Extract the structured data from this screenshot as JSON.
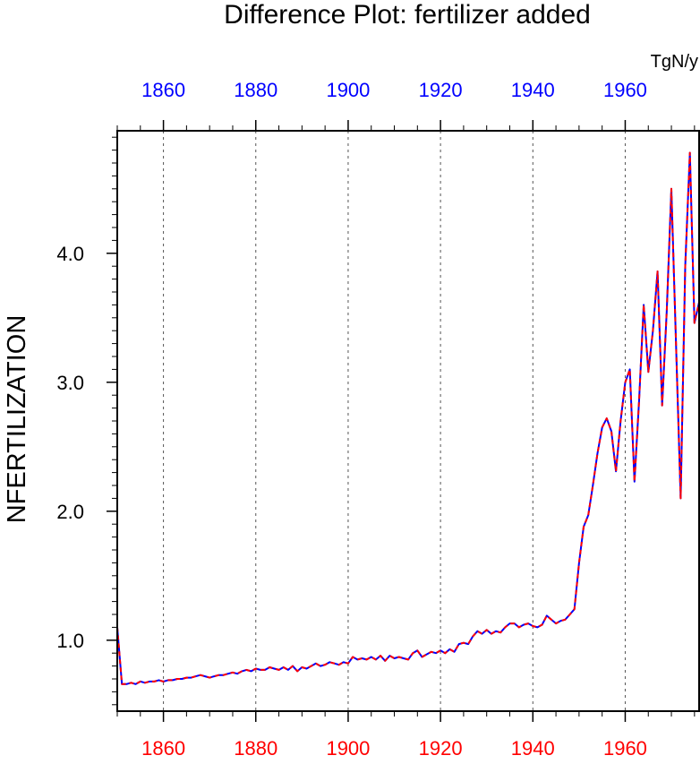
{
  "chart_data": {
    "type": "line",
    "title": "Difference Plot: fertilizer added",
    "xlabel": "",
    "ylabel": "NFERTILIZATION",
    "units": "TgN/y",
    "xlim": [
      1850,
      1976
    ],
    "ylim": [
      0.45,
      4.95
    ],
    "x_ticks_bottom": [
      "1860",
      "1880",
      "1900",
      "1920",
      "1940",
      "1960"
    ],
    "x_ticks_top": [
      "1860",
      "1880",
      "1900",
      "1920",
      "1940",
      "1960"
    ],
    "y_ticks": [
      "1.0",
      "2.0",
      "3.0",
      "4.0"
    ],
    "grid": "vertical dotted lines at major x ticks",
    "colors": {
      "bottom_axis_labels": "#ff0000",
      "top_axis_labels": "#0000ff"
    },
    "series": [
      {
        "color": "#0000ff",
        "style": "solid",
        "x": [
          1850,
          1851,
          1852,
          1853,
          1854,
          1855,
          1856,
          1857,
          1858,
          1859,
          1860,
          1861,
          1862,
          1863,
          1864,
          1865,
          1866,
          1867,
          1868,
          1869,
          1870,
          1871,
          1872,
          1873,
          1874,
          1875,
          1876,
          1877,
          1878,
          1879,
          1880,
          1881,
          1882,
          1883,
          1884,
          1885,
          1886,
          1887,
          1888,
          1889,
          1890,
          1891,
          1892,
          1893,
          1894,
          1895,
          1896,
          1897,
          1898,
          1899,
          1900,
          1901,
          1902,
          1903,
          1904,
          1905,
          1906,
          1907,
          1908,
          1909,
          1910,
          1911,
          1912,
          1913,
          1914,
          1915,
          1916,
          1917,
          1918,
          1919,
          1920,
          1921,
          1922,
          1923,
          1924,
          1925,
          1926,
          1927,
          1928,
          1929,
          1930,
          1931,
          1932,
          1933,
          1934,
          1935,
          1936,
          1937,
          1938,
          1939,
          1940,
          1941,
          1942,
          1943,
          1944,
          1945,
          1946,
          1947,
          1948,
          1949,
          1950,
          1951,
          1952,
          1953,
          1954,
          1955,
          1956,
          1957,
          1958,
          1959,
          1960,
          1961,
          1962,
          1963,
          1964,
          1965,
          1966,
          1967,
          1968,
          1969,
          1970,
          1971,
          1972,
          1973,
          1974,
          1975,
          1976
        ],
        "y": [
          1.1,
          0.66,
          0.66,
          0.67,
          0.66,
          0.68,
          0.67,
          0.68,
          0.68,
          0.69,
          0.68,
          0.69,
          0.69,
          0.7,
          0.7,
          0.71,
          0.71,
          0.72,
          0.73,
          0.72,
          0.71,
          0.72,
          0.73,
          0.73,
          0.74,
          0.75,
          0.74,
          0.76,
          0.77,
          0.76,
          0.78,
          0.77,
          0.77,
          0.79,
          0.78,
          0.77,
          0.79,
          0.77,
          0.8,
          0.76,
          0.79,
          0.78,
          0.8,
          0.82,
          0.8,
          0.81,
          0.83,
          0.82,
          0.81,
          0.83,
          0.82,
          0.87,
          0.85,
          0.86,
          0.85,
          0.87,
          0.85,
          0.88,
          0.84,
          0.88,
          0.86,
          0.87,
          0.86,
          0.85,
          0.9,
          0.92,
          0.87,
          0.89,
          0.91,
          0.9,
          0.92,
          0.9,
          0.93,
          0.91,
          0.97,
          0.98,
          0.97,
          1.03,
          1.07,
          1.05,
          1.08,
          1.05,
          1.07,
          1.06,
          1.1,
          1.13,
          1.13,
          1.1,
          1.12,
          1.13,
          1.11,
          1.1,
          1.12,
          1.19,
          1.16,
          1.13,
          1.15,
          1.16,
          1.2,
          1.24,
          1.6,
          1.88,
          1.97,
          2.2,
          2.45,
          2.65,
          2.72,
          2.62,
          2.31,
          2.7,
          3.0,
          3.1,
          2.23,
          2.85,
          3.6,
          3.08,
          3.4,
          3.86,
          2.82,
          3.56,
          4.5,
          3.3,
          2.1,
          3.9,
          4.78,
          3.46,
          3.62
        ]
      },
      {
        "color": "#ff0000",
        "style": "dashed",
        "x": [
          1850,
          1851,
          1852,
          1853,
          1854,
          1855,
          1856,
          1857,
          1858,
          1859,
          1860,
          1861,
          1862,
          1863,
          1864,
          1865,
          1866,
          1867,
          1868,
          1869,
          1870,
          1871,
          1872,
          1873,
          1874,
          1875,
          1876,
          1877,
          1878,
          1879,
          1880,
          1881,
          1882,
          1883,
          1884,
          1885,
          1886,
          1887,
          1888,
          1889,
          1890,
          1891,
          1892,
          1893,
          1894,
          1895,
          1896,
          1897,
          1898,
          1899,
          1900,
          1901,
          1902,
          1903,
          1904,
          1905,
          1906,
          1907,
          1908,
          1909,
          1910,
          1911,
          1912,
          1913,
          1914,
          1915,
          1916,
          1917,
          1918,
          1919,
          1920,
          1921,
          1922,
          1923,
          1924,
          1925,
          1926,
          1927,
          1928,
          1929,
          1930,
          1931,
          1932,
          1933,
          1934,
          1935,
          1936,
          1937,
          1938,
          1939,
          1940,
          1941,
          1942,
          1943,
          1944,
          1945,
          1946,
          1947,
          1948,
          1949,
          1950,
          1951,
          1952,
          1953,
          1954,
          1955,
          1956,
          1957,
          1958,
          1959,
          1960,
          1961,
          1962,
          1963,
          1964,
          1965,
          1966,
          1967,
          1968,
          1969,
          1970,
          1971,
          1972,
          1973,
          1974,
          1975,
          1976
        ],
        "y": [
          1.1,
          0.66,
          0.66,
          0.67,
          0.66,
          0.68,
          0.67,
          0.68,
          0.68,
          0.69,
          0.68,
          0.69,
          0.69,
          0.7,
          0.7,
          0.71,
          0.71,
          0.72,
          0.73,
          0.72,
          0.71,
          0.72,
          0.73,
          0.73,
          0.74,
          0.75,
          0.74,
          0.76,
          0.77,
          0.76,
          0.78,
          0.77,
          0.77,
          0.79,
          0.78,
          0.77,
          0.79,
          0.77,
          0.8,
          0.76,
          0.79,
          0.78,
          0.8,
          0.82,
          0.8,
          0.81,
          0.83,
          0.82,
          0.81,
          0.83,
          0.82,
          0.87,
          0.85,
          0.86,
          0.85,
          0.87,
          0.85,
          0.88,
          0.84,
          0.88,
          0.86,
          0.87,
          0.86,
          0.85,
          0.9,
          0.92,
          0.87,
          0.89,
          0.91,
          0.9,
          0.92,
          0.9,
          0.93,
          0.91,
          0.97,
          0.98,
          0.97,
          1.03,
          1.07,
          1.05,
          1.08,
          1.05,
          1.07,
          1.06,
          1.1,
          1.13,
          1.13,
          1.1,
          1.12,
          1.13,
          1.11,
          1.1,
          1.12,
          1.19,
          1.16,
          1.13,
          1.15,
          1.16,
          1.2,
          1.24,
          1.6,
          1.88,
          1.97,
          2.2,
          2.45,
          2.65,
          2.72,
          2.62,
          2.31,
          2.7,
          3.0,
          3.1,
          2.23,
          2.85,
          3.6,
          3.08,
          3.4,
          3.86,
          2.82,
          3.56,
          4.5,
          3.3,
          2.1,
          3.9,
          4.78,
          3.46,
          3.62
        ]
      }
    ]
  }
}
